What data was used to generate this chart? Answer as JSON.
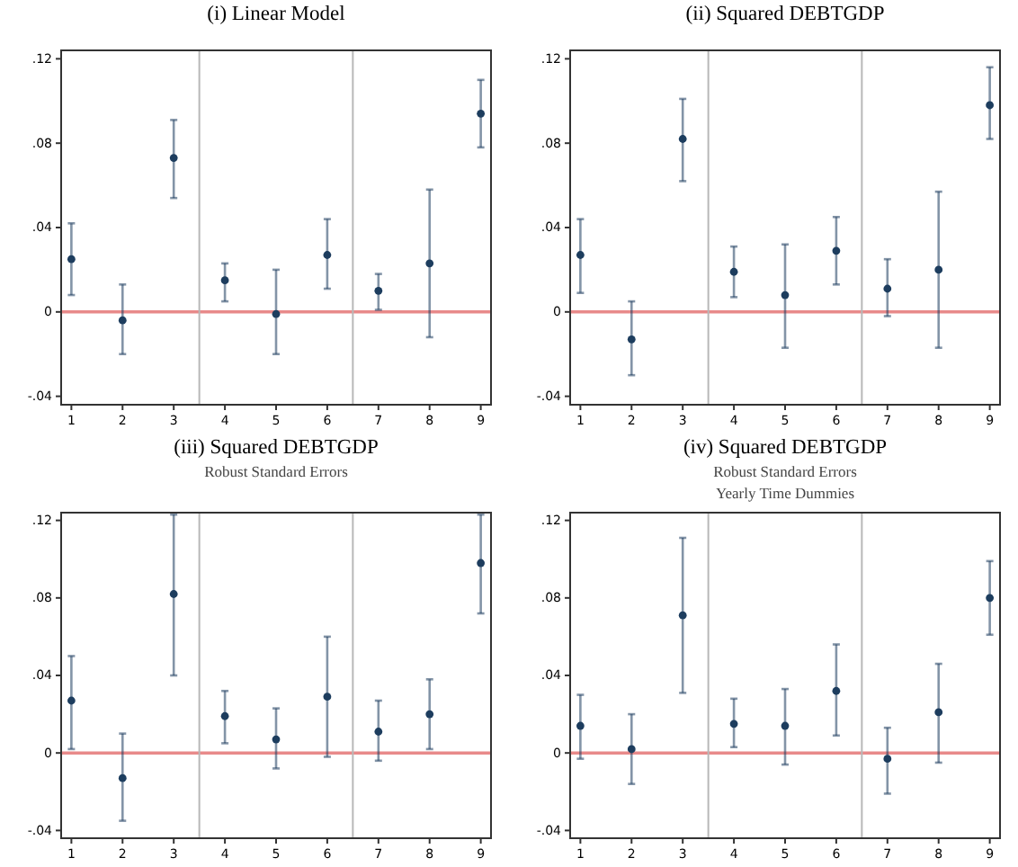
{
  "chart_data": [
    {
      "type": "scatter",
      "title": "(i) Linear Model",
      "x": [
        1,
        2,
        3,
        4,
        5,
        6,
        7,
        8,
        9
      ],
      "xlim": [
        0.8,
        9.2
      ],
      "xticks": [
        1,
        2,
        3,
        4,
        5,
        6,
        7,
        8,
        9
      ],
      "ylim": [
        -0.044,
        0.124
      ],
      "yticks": [
        {
          "value": 0.12,
          "label": ".12"
        },
        {
          "value": 0.08,
          "label": ".08"
        },
        {
          "value": 0.04,
          "label": ".04"
        },
        {
          "value": 0,
          "label": "0"
        },
        {
          "value": -0.04,
          "label": "-.04"
        }
      ],
      "grid": false,
      "marker": "circle",
      "ref_lines": [
        {
          "axis": "y",
          "value": 0,
          "color": "#e88a8a"
        },
        {
          "axis": "x",
          "value": 3.5,
          "color": "#b8b8b8"
        },
        {
          "axis": "x",
          "value": 6.5,
          "color": "#b8b8b8"
        }
      ],
      "series": [
        {
          "color": "#1d3d5e",
          "values": [
            0.025,
            -0.004,
            0.073,
            0.015,
            -0.001,
            0.027,
            0.01,
            0.023,
            0.094
          ],
          "errors": [
            [
              0.008,
              0.042
            ],
            [
              -0.02,
              0.013
            ],
            [
              0.054,
              0.091
            ],
            [
              0.005,
              0.023
            ],
            [
              -0.02,
              0.02
            ],
            [
              0.011,
              0.044
            ],
            [
              0.001,
              0.018
            ],
            [
              -0.012,
              0.058
            ],
            [
              0.078,
              0.11
            ]
          ]
        }
      ]
    },
    {
      "type": "scatter",
      "title": "(ii) Squared DEBTGDP",
      "x": [
        1,
        2,
        3,
        4,
        5,
        6,
        7,
        8,
        9
      ],
      "xlim": [
        0.8,
        9.2
      ],
      "xticks": [
        1,
        2,
        3,
        4,
        5,
        6,
        7,
        8,
        9
      ],
      "ylim": [
        -0.044,
        0.124
      ],
      "yticks": [
        {
          "value": 0.12,
          "label": ".12"
        },
        {
          "value": 0.08,
          "label": ".08"
        },
        {
          "value": 0.04,
          "label": ".04"
        },
        {
          "value": 0,
          "label": "0"
        },
        {
          "value": -0.04,
          "label": "-.04"
        }
      ],
      "grid": false,
      "marker": "circle",
      "ref_lines": [
        {
          "axis": "y",
          "value": 0,
          "color": "#e88a8a"
        },
        {
          "axis": "x",
          "value": 3.5,
          "color": "#b8b8b8"
        },
        {
          "axis": "x",
          "value": 6.5,
          "color": "#b8b8b8"
        }
      ],
      "series": [
        {
          "color": "#1d3d5e",
          "values": [
            0.027,
            -0.013,
            0.082,
            0.019,
            0.008,
            0.029,
            0.011,
            0.02,
            0.098
          ],
          "errors": [
            [
              0.009,
              0.044
            ],
            [
              -0.03,
              0.005
            ],
            [
              0.062,
              0.101
            ],
            [
              0.007,
              0.031
            ],
            [
              -0.017,
              0.032
            ],
            [
              0.013,
              0.045
            ],
            [
              -0.002,
              0.025
            ],
            [
              -0.017,
              0.057
            ],
            [
              0.082,
              0.116
            ]
          ]
        }
      ]
    },
    {
      "type": "scatter",
      "title": "(iii) Squared DEBTGDP",
      "subtitle": "Robust Standard Errors",
      "x": [
        1,
        2,
        3,
        4,
        5,
        6,
        7,
        8,
        9
      ],
      "xlim": [
        0.8,
        9.2
      ],
      "xticks": [
        1,
        2,
        3,
        4,
        5,
        6,
        7,
        8,
        9
      ],
      "ylim": [
        -0.044,
        0.124
      ],
      "yticks": [
        {
          "value": 0.12,
          "label": ".12"
        },
        {
          "value": 0.08,
          "label": ".08"
        },
        {
          "value": 0.04,
          "label": ".04"
        },
        {
          "value": 0,
          "label": "0"
        },
        {
          "value": -0.04,
          "label": "-.04"
        }
      ],
      "grid": false,
      "marker": "circle",
      "ref_lines": [
        {
          "axis": "y",
          "value": 0,
          "color": "#e88a8a"
        },
        {
          "axis": "x",
          "value": 3.5,
          "color": "#b8b8b8"
        },
        {
          "axis": "x",
          "value": 6.5,
          "color": "#b8b8b8"
        }
      ],
      "series": [
        {
          "color": "#1d3d5e",
          "values": [
            0.027,
            -0.013,
            0.082,
            0.019,
            0.007,
            0.029,
            0.011,
            0.02,
            0.098
          ],
          "errors": [
            [
              0.002,
              0.05
            ],
            [
              -0.035,
              0.01
            ],
            [
              0.04,
              0.123
            ],
            [
              0.005,
              0.032
            ],
            [
              -0.008,
              0.023
            ],
            [
              -0.002,
              0.06
            ],
            [
              -0.004,
              0.027
            ],
            [
              0.002,
              0.038
            ],
            [
              0.072,
              0.123
            ]
          ]
        }
      ]
    },
    {
      "type": "scatter",
      "title": "(iv) Squared DEBTGDP",
      "subtitle": "Robust Standard Errors\nYearly Time Dummies",
      "x": [
        1,
        2,
        3,
        4,
        5,
        6,
        7,
        8,
        9
      ],
      "xlim": [
        0.8,
        9.2
      ],
      "xticks": [
        1,
        2,
        3,
        4,
        5,
        6,
        7,
        8,
        9
      ],
      "ylim": [
        -0.044,
        0.124
      ],
      "yticks": [
        {
          "value": 0.12,
          "label": ".12"
        },
        {
          "value": 0.08,
          "label": ".08"
        },
        {
          "value": 0.04,
          "label": ".04"
        },
        {
          "value": 0,
          "label": "0"
        },
        {
          "value": -0.04,
          "label": "-.04"
        }
      ],
      "grid": false,
      "marker": "circle",
      "ref_lines": [
        {
          "axis": "y",
          "value": 0,
          "color": "#e88a8a"
        },
        {
          "axis": "x",
          "value": 3.5,
          "color": "#b8b8b8"
        },
        {
          "axis": "x",
          "value": 6.5,
          "color": "#b8b8b8"
        }
      ],
      "series": [
        {
          "color": "#1d3d5e",
          "values": [
            0.014,
            0.002,
            0.071,
            0.015,
            0.014,
            0.032,
            -0.003,
            0.021,
            0.08
          ],
          "errors": [
            [
              -0.003,
              0.03
            ],
            [
              -0.016,
              0.02
            ],
            [
              0.031,
              0.111
            ],
            [
              0.003,
              0.028
            ],
            [
              -0.006,
              0.033
            ],
            [
              0.009,
              0.056
            ],
            [
              -0.021,
              0.013
            ],
            [
              -0.005,
              0.046
            ],
            [
              0.061,
              0.099
            ]
          ]
        }
      ]
    }
  ]
}
